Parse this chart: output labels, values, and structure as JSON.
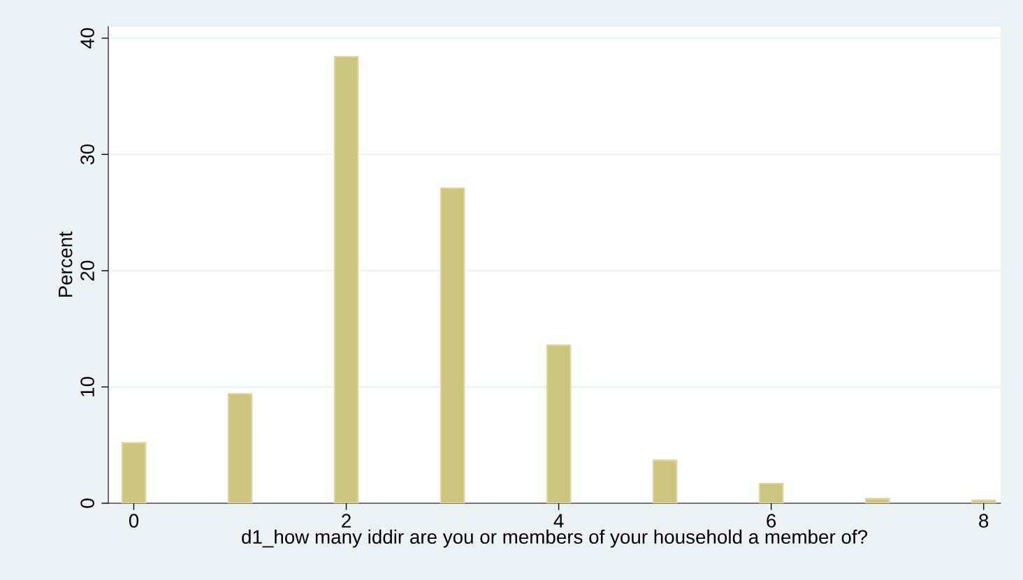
{
  "chart_data": {
    "type": "bar",
    "xlabel": "d1_how many iddir are you or members of your household a member of?",
    "ylabel": "Percent",
    "x": [
      0,
      1,
      2,
      3,
      4,
      5,
      6,
      7,
      8
    ],
    "values": [
      5.2,
      9.4,
      38.4,
      27.1,
      13.6,
      3.7,
      1.7,
      0.4,
      0.25
    ],
    "color": "#cdc47f",
    "xlim": [
      -0.24,
      8.16
    ],
    "xticks": [
      0,
      2,
      4,
      6,
      8
    ],
    "ylim": [
      0,
      41
    ],
    "yticks": [
      0,
      10,
      20,
      30,
      40
    ],
    "grid": "y"
  }
}
